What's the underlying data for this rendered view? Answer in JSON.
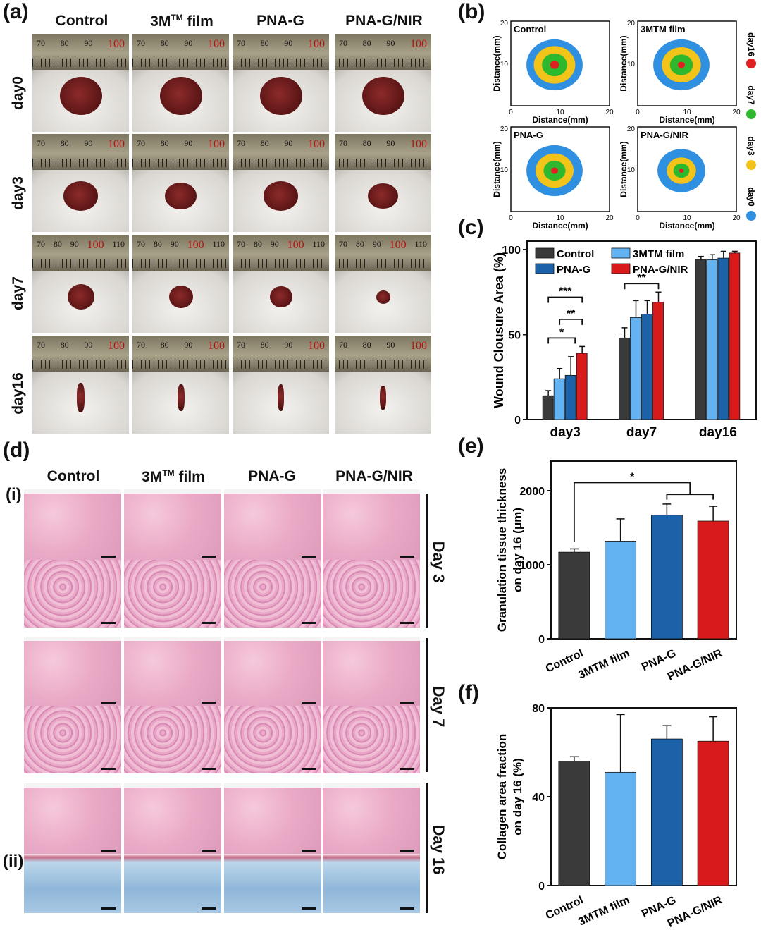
{
  "panel_a": {
    "label": "(a)",
    "columns": [
      "Control",
      "3M",
      "PNA-G",
      "PNA-G/NIR"
    ],
    "column2_sup": "TM",
    "column2_suffix": " film",
    "rows": [
      "day0",
      "day3",
      "day7",
      "day16"
    ],
    "ruler_rows": [
      [
        "70",
        "80",
        "90",
        "100"
      ],
      [
        "70",
        "80",
        "90",
        "100"
      ],
      [
        "70",
        "80",
        "90",
        "100",
        "110"
      ],
      [
        "70",
        "80",
        "90",
        "100"
      ]
    ]
  },
  "panel_b": {
    "label": "(b)",
    "plots": [
      "Control",
      "3MTM film",
      "PNA-G",
      "PNA-G/NIR"
    ],
    "xlabel": "Distance(mm)",
    "ylabel": "Distance(mm)",
    "ticks": [
      "0",
      "10",
      "20"
    ],
    "legend": [
      {
        "name": "day16",
        "color": "#e02020"
      },
      {
        "name": "day7",
        "color": "#2eb82e"
      },
      {
        "name": "day3",
        "color": "#f2c318"
      },
      {
        "name": "day0",
        "color": "#2f8fe0"
      }
    ]
  },
  "chart_data": [
    {
      "id": "c",
      "label": "(c)",
      "type": "bar",
      "categories": [
        "day3",
        "day7",
        "day16"
      ],
      "ylabel": "Wound Clousure Area (%)",
      "ylim": [
        0,
        105
      ],
      "yticks": [
        0,
        50,
        100
      ],
      "series": [
        {
          "name": "Control",
          "color": "#3a3a3a",
          "values": [
            14,
            48,
            94
          ],
          "errors": [
            3,
            6,
            2
          ]
        },
        {
          "name": "3MTM film",
          "color": "#63b3f2",
          "values": [
            24,
            60,
            94
          ],
          "errors": [
            6,
            10,
            3
          ]
        },
        {
          "name": "PNA-G",
          "color": "#1b62a8",
          "values": [
            26,
            62,
            95
          ],
          "errors": [
            11,
            8,
            4
          ]
        },
        {
          "name": "PNA-G/NIR",
          "color": "#d91a1a",
          "values": [
            39,
            69,
            98
          ],
          "errors": [
            4,
            6,
            1
          ]
        }
      ],
      "significance": [
        "***",
        "**",
        "*",
        "**"
      ]
    },
    {
      "id": "e",
      "label": "(e)",
      "type": "bar",
      "categories": [
        "Control",
        "3MTM film",
        "PNA-G",
        "PNA-G/NIR"
      ],
      "ylabel": "Granulation tissue thickness on day 16 (μm)",
      "ylim": [
        0,
        2400
      ],
      "yticks": [
        0,
        1000,
        2000
      ],
      "values": [
        1170,
        1320,
        1670,
        1590
      ],
      "errors": [
        45,
        300,
        150,
        200
      ],
      "colors": [
        "#3a3a3a",
        "#63b3f2",
        "#1b62a8",
        "#d91a1a"
      ],
      "significance": [
        "*"
      ]
    },
    {
      "id": "f",
      "label": "(f)",
      "type": "bar",
      "categories": [
        "Control",
        "3MTM film",
        "PNA-G",
        "PNA-G/NIR"
      ],
      "ylabel": "Collagen area fraction on day 16 (%)",
      "ylim": [
        0,
        80
      ],
      "yticks": [
        0,
        40,
        80
      ],
      "values": [
        56,
        51,
        66,
        65
      ],
      "errors": [
        2,
        26,
        6,
        11
      ],
      "colors": [
        "#3a3a3a",
        "#63b3f2",
        "#1b62a8",
        "#d91a1a"
      ]
    }
  ],
  "panel_d": {
    "label": "(d)",
    "columns": [
      "Control",
      "3M",
      "PNA-G",
      "PNA-G/NIR"
    ],
    "sub_i": "(i)",
    "sub_ii": "(ii)",
    "days": [
      "Day 3",
      "Day 7",
      "Day 16"
    ]
  }
}
